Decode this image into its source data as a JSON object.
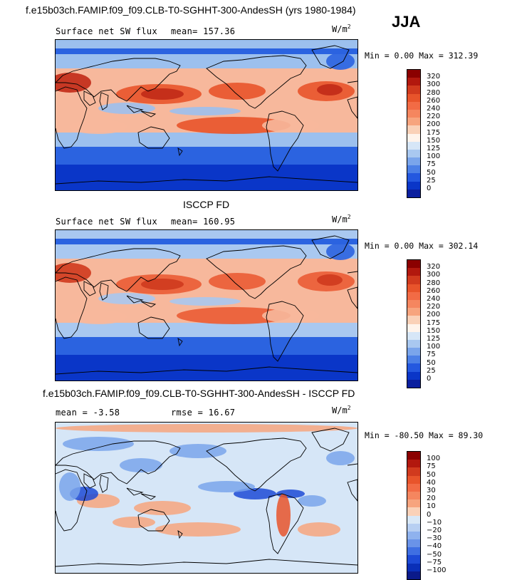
{
  "header": {
    "main_title": "f.e15b03ch.FAMIP.f09_f09.CLB-T0-SGHHT-300-AndesSH (yrs 1980-1984)",
    "season": "JJA"
  },
  "panels": [
    {
      "id": "model",
      "title": "",
      "left_label": "Surface net SW flux",
      "mean_label": "mean= 157.36",
      "units_base": "W/m",
      "units_exp": "2",
      "minmax": "Min =   0.00 Max = 312.39",
      "colorbar_labels": [
        "320",
        "300",
        "280",
        "260",
        "240",
        "220",
        "200",
        "175",
        "150",
        "125",
        "100",
        "75",
        "50",
        "25",
        "0"
      ],
      "colorbar_colors": [
        "#8b0000",
        "#b2180e",
        "#d13a1e",
        "#e8542b",
        "#f26b45",
        "#f5865f",
        "#f7a47e",
        "#fad1b8",
        "#fff4ec",
        "#d6e6f7",
        "#a9c8f0",
        "#7aa5eb",
        "#4c80e6",
        "#2458df",
        "#0a36c8",
        "#0b1f9e"
      ],
      "map_colors": {
        "polar": "#0a36c8",
        "subpolar": "#2b63e0",
        "mid": "#9cc0ee",
        "tropic": "#f7b89c",
        "core": "#e8542b",
        "hot": "#c12a17"
      }
    },
    {
      "id": "obs",
      "title": "ISCCP FD",
      "left_label": "Surface net SW flux",
      "mean_label": "mean= 160.95",
      "units_base": "W/m",
      "units_exp": "2",
      "minmax": "Min =   0.00 Max = 302.14",
      "colorbar_labels": [
        "320",
        "300",
        "280",
        "260",
        "240",
        "220",
        "200",
        "175",
        "150",
        "125",
        "100",
        "75",
        "50",
        "25",
        "0"
      ],
      "colorbar_colors": [
        "#8b0000",
        "#b2180e",
        "#d13a1e",
        "#e8542b",
        "#f26b45",
        "#f5865f",
        "#f7a47e",
        "#fad1b8",
        "#fff4ec",
        "#d6e6f7",
        "#a9c8f0",
        "#7aa5eb",
        "#4c80e6",
        "#2458df",
        "#0a36c8",
        "#0b1f9e"
      ],
      "map_colors": {
        "polar": "#0a36c8",
        "subpolar": "#2b63e0",
        "mid": "#a9c8f0",
        "tropic": "#f7b89c",
        "core": "#ea5c35",
        "hot": "#cf3a1e"
      }
    },
    {
      "id": "diff",
      "title": "f.e15b03ch.FAMIP.f09_f09.CLB-T0-SGHHT-300-AndesSH - ISCCP FD",
      "left_label": "mean =  -3.58",
      "mean_label": "rmse =  16.67",
      "units_base": "W/m",
      "units_exp": "2",
      "minmax": "Min = -80.50 Max =  89.30",
      "colorbar_labels": [
        "100",
        "75",
        "50",
        "40",
        "30",
        "20",
        "10",
        "0",
        "−10",
        "−20",
        "−30",
        "−40",
        "−50",
        "−75",
        "−100"
      ],
      "colorbar_colors": [
        "#8b0000",
        "#b2180e",
        "#d13a1e",
        "#e8542b",
        "#f26b45",
        "#f5865f",
        "#f7a47e",
        "#fad1b8",
        "#d9e8f7",
        "#b7cff2",
        "#8fb2ee",
        "#6a93e8",
        "#3f6fe2",
        "#1d4ad6",
        "#0a2fb8",
        "#0b1a8a"
      ],
      "map_colors": {
        "base": "#d6e6f7",
        "pos": "#f7a47e",
        "posStrong": "#e8542b",
        "neg": "#7aa5eb",
        "negStrong": "#1d4ad6"
      }
    }
  ]
}
